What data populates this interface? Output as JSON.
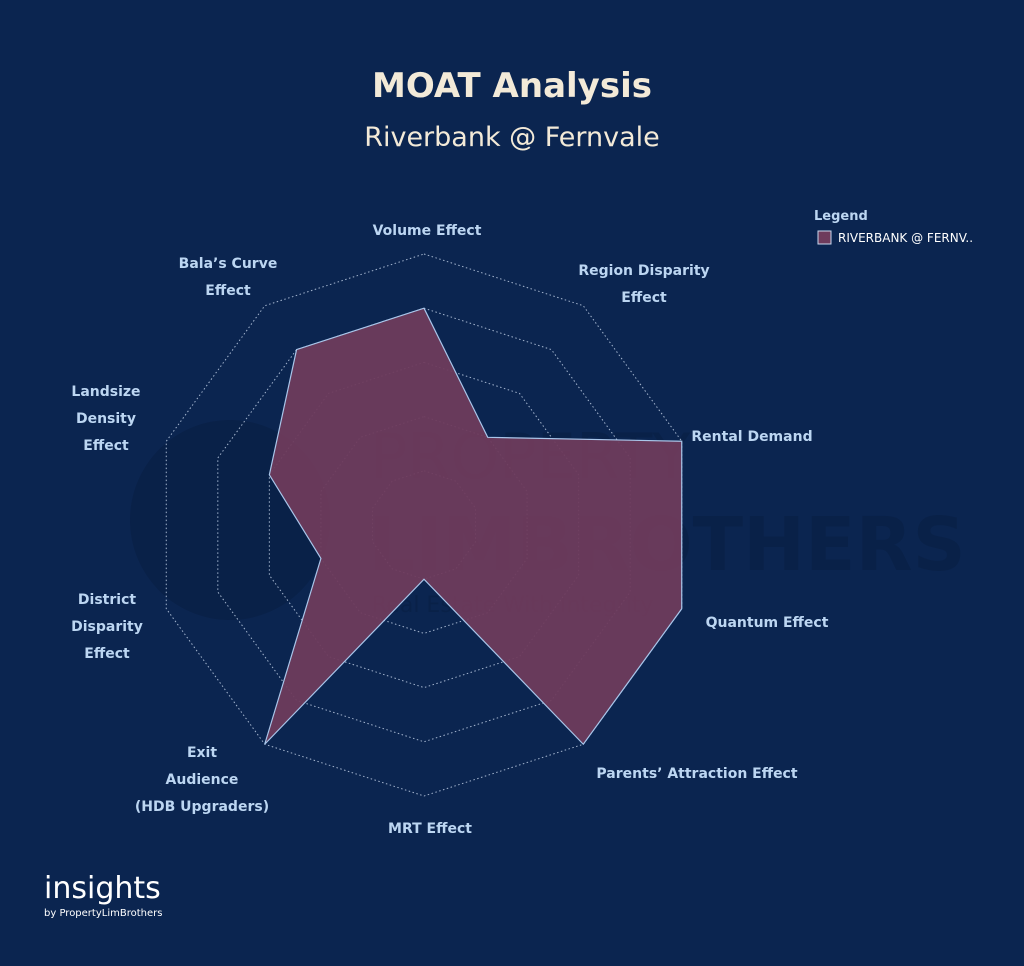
{
  "chart_data": {
    "type": "radar",
    "title": "MOAT Analysis",
    "subtitle": "Riverbank @ Fernvale",
    "categories": [
      "Volume Effect",
      "Region Disparity Effect",
      "Rental Demand",
      "Quantum Effect",
      "Parents’ Attraction Effect",
      "MRT Effect",
      "Exit Audience (HDB Upgraders)",
      "District Disparity Effect",
      "Landsize Density Effect",
      "Bala’s Curve Effect"
    ],
    "series": [
      {
        "name": "RIVERBANK @ FERNV..",
        "color": "#6e3b5c",
        "values": [
          4,
          2,
          5,
          5,
          5,
          1,
          5,
          2,
          3,
          4
        ]
      }
    ],
    "rlim": [
      0,
      5
    ],
    "rticks": [
      1,
      2,
      3,
      4,
      5
    ],
    "grid": true,
    "legend": {
      "title": "Legend",
      "position": "top-right"
    },
    "watermark": {
      "line1": "PROPERTY",
      "line2": "LIMBROTHERS",
      "line3": "Real Estate With Integrity"
    },
    "footer": {
      "brand": "insights",
      "byline": "by PropertyLimBrothers"
    }
  }
}
